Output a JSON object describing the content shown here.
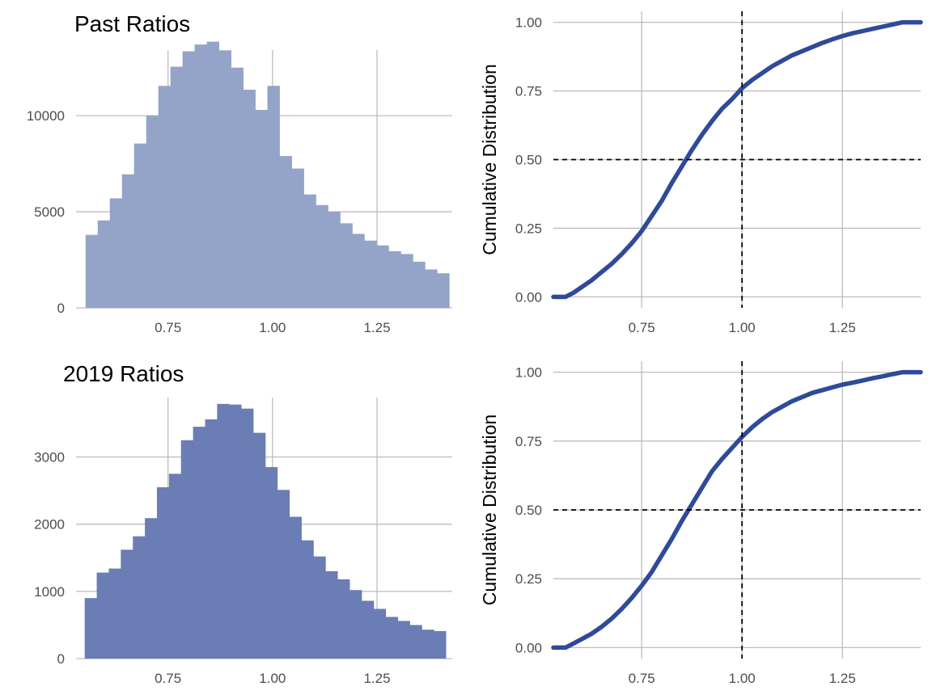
{
  "colors": {
    "grid": "#bdbdbd",
    "hist_past": "#94a3c8",
    "hist_2019": "#6a7db4",
    "ecdf_line": "#2e4a99",
    "ref_line": "#000000"
  },
  "chart_data": [
    {
      "type": "bar",
      "title": "Past Ratios",
      "xlabel": "",
      "ylabel": "",
      "grid": true,
      "legend": "none",
      "xlim": [
        0.53,
        1.43
      ],
      "ylim": [
        0,
        14000
      ],
      "bin_width": 0.029,
      "x_ticks": [
        0.75,
        1.0,
        1.25
      ],
      "x_tick_labels": [
        "0.75",
        "1.00",
        "1.25"
      ],
      "y_ticks": [
        0,
        5000,
        10000
      ],
      "y_tick_labels": [
        "0",
        "5000",
        "10000"
      ],
      "bin_centers": [
        0.5673,
        0.5963,
        0.6253,
        0.6543,
        0.6833,
        0.7123,
        0.7413,
        0.7703,
        0.7993,
        0.8283,
        0.8573,
        0.8863,
        0.9153,
        0.9443,
        0.9733,
        1.0023,
        1.0313,
        1.0603,
        1.0893,
        1.1183,
        1.1473,
        1.1763,
        1.2053,
        1.2343,
        1.2633,
        1.2923,
        1.3213,
        1.3503,
        1.3793,
        1.4083
      ],
      "values": [
        3800,
        4550,
        5700,
        6950,
        8550,
        10000,
        11550,
        12550,
        13350,
        13700,
        13850,
        13400,
        12500,
        11350,
        10300,
        11550,
        7900,
        7250,
        5900,
        5350,
        5000,
        4400,
        3850,
        3500,
        3250,
        2950,
        2800,
        2400,
        2000,
        1800
      ]
    },
    {
      "type": "line",
      "title": "",
      "xlabel": "",
      "ylabel": "Cumulative Distribution",
      "grid": true,
      "legend": "none",
      "xlim": [
        0.53,
        1.445
      ],
      "ylim": [
        -0.04,
        1.04
      ],
      "x_ticks": [
        0.75,
        1.0,
        1.25
      ],
      "x_tick_labels": [
        "0.75",
        "1.00",
        "1.25"
      ],
      "y_ticks": [
        0,
        0.25,
        0.5,
        0.75,
        1.0
      ],
      "y_tick_labels": [
        "0.00",
        "0.25",
        "0.50",
        "0.75",
        "1.00"
      ],
      "reference_lines": {
        "x": 1.0,
        "y": 0.5
      },
      "x": [
        0.53,
        0.55,
        0.56,
        0.58,
        0.6,
        0.625,
        0.65,
        0.675,
        0.7,
        0.725,
        0.75,
        0.775,
        0.8,
        0.825,
        0.85,
        0.875,
        0.9,
        0.925,
        0.95,
        0.975,
        1.0,
        1.025,
        1.05,
        1.075,
        1.1,
        1.125,
        1.15,
        1.175,
        1.2,
        1.225,
        1.25,
        1.275,
        1.3,
        1.325,
        1.35,
        1.375,
        1.4,
        1.41,
        1.445
      ],
      "values": [
        0.0,
        0.0,
        0.0,
        0.015,
        0.035,
        0.06,
        0.09,
        0.12,
        0.155,
        0.195,
        0.24,
        0.295,
        0.35,
        0.415,
        0.475,
        0.535,
        0.59,
        0.64,
        0.685,
        0.72,
        0.76,
        0.79,
        0.815,
        0.84,
        0.86,
        0.88,
        0.895,
        0.91,
        0.925,
        0.938,
        0.95,
        0.96,
        0.968,
        0.976,
        0.984,
        0.992,
        1.0,
        1.0,
        1.0
      ]
    },
    {
      "type": "bar",
      "title": "2019 Ratios",
      "xlabel": "",
      "ylabel": "",
      "grid": true,
      "legend": "none",
      "xlim": [
        0.53,
        1.43
      ],
      "ylim": [
        0,
        3800
      ],
      "bin_width": 0.0288,
      "x_ticks": [
        0.75,
        1.0,
        1.25
      ],
      "x_tick_labels": [
        "0.75",
        "1.00",
        "1.25"
      ],
      "y_ticks": [
        0,
        1000,
        2000,
        3000
      ],
      "y_tick_labels": [
        "0",
        "1000",
        "2000",
        "3000"
      ],
      "bin_centers": [
        0.5651,
        0.5939,
        0.6227,
        0.6515,
        0.6803,
        0.7091,
        0.7379,
        0.7667,
        0.7955,
        0.8243,
        0.8531,
        0.8819,
        0.9107,
        0.9395,
        0.9683,
        0.9971,
        1.0259,
        1.0547,
        1.0835,
        1.1123,
        1.1411,
        1.1699,
        1.1987,
        1.2275,
        1.2563,
        1.2851,
        1.3139,
        1.3427,
        1.3715,
        1.4003
      ],
      "values": [
        900,
        1280,
        1340,
        1620,
        1820,
        2090,
        2550,
        2750,
        3250,
        3450,
        3560,
        3790,
        3780,
        3720,
        3360,
        2850,
        2510,
        2110,
        1760,
        1520,
        1300,
        1180,
        1020,
        860,
        740,
        620,
        560,
        500,
        430,
        410
      ]
    },
    {
      "type": "line",
      "title": "",
      "xlabel": "",
      "ylabel": "Cumulative Distribution",
      "grid": true,
      "legend": "none",
      "xlim": [
        0.53,
        1.445
      ],
      "ylim": [
        -0.04,
        1.04
      ],
      "x_ticks": [
        0.75,
        1.0,
        1.25
      ],
      "x_tick_labels": [
        "0.75",
        "1.00",
        "1.25"
      ],
      "y_ticks": [
        0,
        0.25,
        0.5,
        0.75,
        1.0
      ],
      "y_tick_labels": [
        "0.00",
        "0.25",
        "0.50",
        "0.75",
        "1.00"
      ],
      "reference_lines": {
        "x": 1.0,
        "y": 0.5
      },
      "x": [
        0.53,
        0.55,
        0.56,
        0.58,
        0.6,
        0.625,
        0.65,
        0.675,
        0.7,
        0.725,
        0.75,
        0.775,
        0.8,
        0.825,
        0.85,
        0.875,
        0.9,
        0.925,
        0.95,
        0.975,
        1.0,
        1.025,
        1.05,
        1.075,
        1.1,
        1.125,
        1.15,
        1.175,
        1.2,
        1.225,
        1.25,
        1.275,
        1.3,
        1.325,
        1.35,
        1.375,
        1.4,
        1.41,
        1.445
      ],
      "values": [
        0.0,
        0.0,
        0.0,
        0.015,
        0.03,
        0.05,
        0.075,
        0.105,
        0.14,
        0.18,
        0.225,
        0.275,
        0.335,
        0.395,
        0.46,
        0.52,
        0.58,
        0.64,
        0.685,
        0.725,
        0.765,
        0.8,
        0.83,
        0.855,
        0.875,
        0.895,
        0.91,
        0.925,
        0.935,
        0.945,
        0.955,
        0.962,
        0.97,
        0.978,
        0.985,
        0.993,
        1.0,
        1.0,
        1.0
      ]
    }
  ]
}
